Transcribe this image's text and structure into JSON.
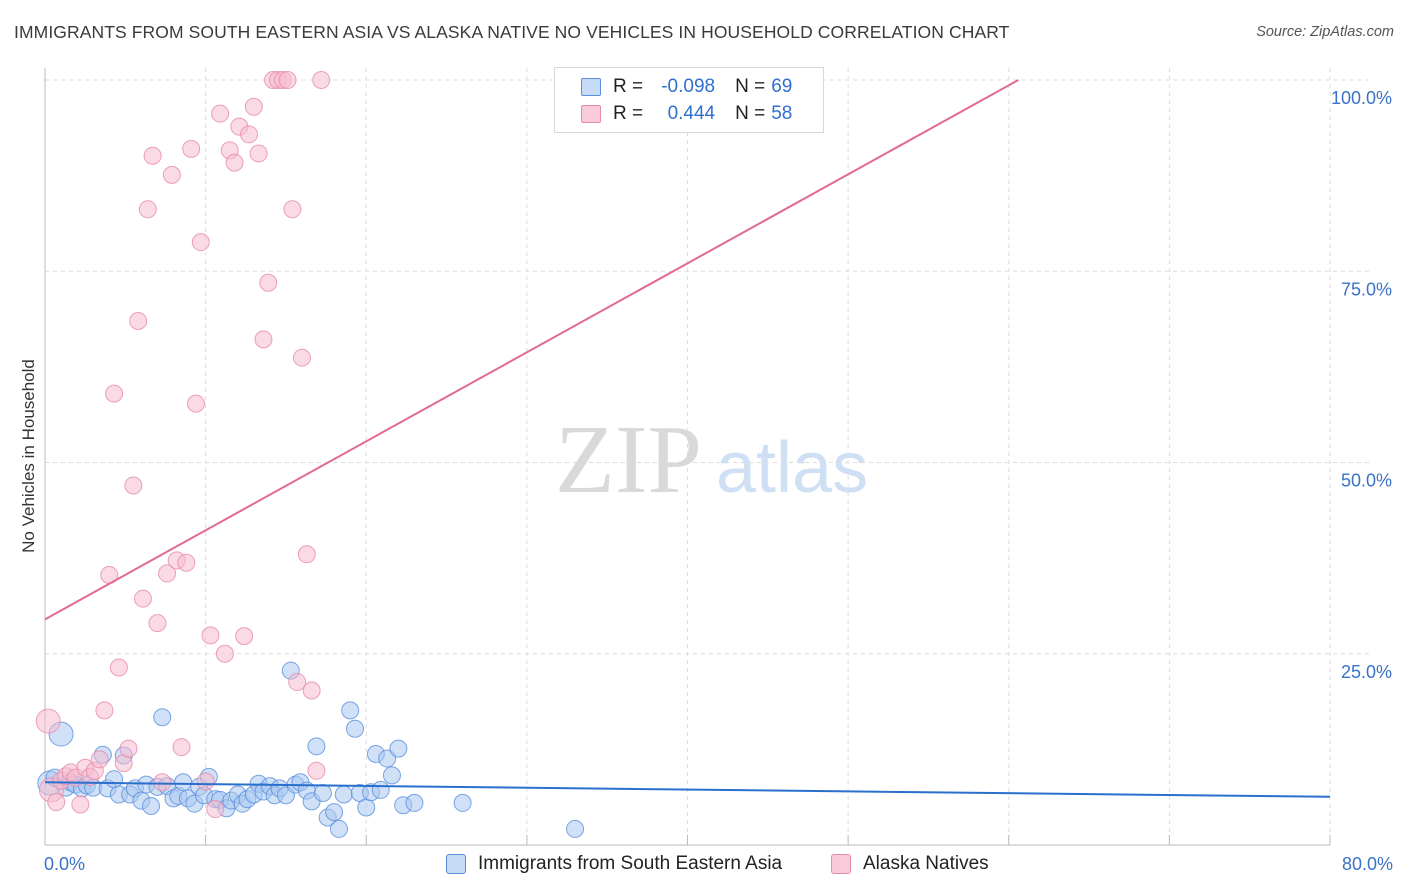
{
  "title": "IMMIGRANTS FROM SOUTH EASTERN ASIA VS ALASKA NATIVE NO VEHICLES IN HOUSEHOLD CORRELATION CHART",
  "source": "Source: ZipAtlas.com",
  "watermark": {
    "zip": "ZIP",
    "atlas": "atlas"
  },
  "colors": {
    "blue_fill": "#a9c8f0",
    "blue_stroke": "#5a8fdc",
    "blue_line": "#2b6fcc",
    "pink_fill": "#f6bcd0",
    "pink_stroke": "#e78aa9",
    "pink_line": "#e2698f",
    "axis_text": "#3a72c8",
    "grid": "#dddddd"
  },
  "legend": {
    "rows": [
      {
        "r_label": "R =",
        "r_value": "-0.098",
        "n_label": "N =",
        "n_value": "69",
        "series": "blue"
      },
      {
        "r_label": "R =",
        "r_value": "0.444",
        "n_label": "N =",
        "n_value": "58",
        "series": "pink"
      }
    ]
  },
  "chart_data": {
    "type": "scatter",
    "title": "IMMIGRANTS FROM SOUTH EASTERN ASIA VS ALASKA NATIVE NO VEHICLES IN HOUSEHOLD CORRELATION CHART",
    "xlabel": "",
    "ylabel": "No Vehicles in Household",
    "xlim": [
      0,
      80
    ],
    "ylim": [
      0,
      102
    ],
    "x_tick_labels": [
      {
        "value": 0,
        "label": "0.0%"
      },
      {
        "value": 80,
        "label": "80.0%"
      }
    ],
    "y_tick_labels": [
      {
        "value": 25,
        "label": "25.0%"
      },
      {
        "value": 50,
        "label": "50.0%"
      },
      {
        "value": 75,
        "label": "75.0%"
      },
      {
        "value": 100,
        "label": "100.0%"
      }
    ],
    "series": [
      {
        "name": "Immigrants from South Eastern Asia",
        "color": "blue",
        "trend": {
          "x0": 0,
          "y0": 8.2,
          "x1": 80,
          "y1": 6.3
        },
        "points": [
          [
            0.3,
            8.1,
            2
          ],
          [
            0.6,
            8.8,
            1
          ],
          [
            1.0,
            14.5,
            2
          ],
          [
            1.3,
            7.5,
            1
          ],
          [
            1.6,
            8.2,
            1
          ],
          [
            1.9,
            7.9,
            1
          ],
          [
            2.3,
            7.4,
            1
          ],
          [
            2.6,
            7.8,
            1
          ],
          [
            3.0,
            7.5,
            1
          ],
          [
            3.6,
            11.8,
            1
          ],
          [
            3.9,
            7.4,
            1
          ],
          [
            4.3,
            8.6,
            1
          ],
          [
            4.6,
            6.6,
            1
          ],
          [
            4.9,
            11.7,
            1
          ],
          [
            5.3,
            6.6,
            1
          ],
          [
            5.6,
            7.4,
            1
          ],
          [
            6.0,
            5.8,
            1
          ],
          [
            6.3,
            7.9,
            1
          ],
          [
            6.6,
            5.1,
            1
          ],
          [
            7.0,
            7.6,
            1
          ],
          [
            7.3,
            16.7,
            1
          ],
          [
            7.6,
            7.7,
            1
          ],
          [
            8.0,
            6.1,
            1
          ],
          [
            8.3,
            6.4,
            1
          ],
          [
            8.6,
            8.2,
            1
          ],
          [
            8.9,
            6.1,
            1
          ],
          [
            9.3,
            5.4,
            1
          ],
          [
            9.6,
            7.6,
            1
          ],
          [
            9.9,
            6.5,
            1
          ],
          [
            10.2,
            8.9,
            1
          ],
          [
            10.6,
            6.0,
            1
          ],
          [
            10.9,
            5.9,
            1
          ],
          [
            11.3,
            4.8,
            1
          ],
          [
            11.6,
            5.8,
            1
          ],
          [
            12.0,
            6.6,
            1
          ],
          [
            12.3,
            5.4,
            1
          ],
          [
            12.6,
            6.0,
            1
          ],
          [
            13.0,
            6.6,
            1
          ],
          [
            13.3,
            8.0,
            1
          ],
          [
            13.6,
            7.0,
            1
          ],
          [
            14.0,
            7.7,
            1
          ],
          [
            14.3,
            6.5,
            1
          ],
          [
            14.6,
            7.4,
            1
          ],
          [
            15.0,
            6.5,
            1
          ],
          [
            15.3,
            22.8,
            1
          ],
          [
            15.6,
            7.9,
            1
          ],
          [
            15.9,
            8.2,
            1
          ],
          [
            16.3,
            7.1,
            1
          ],
          [
            16.6,
            5.7,
            1
          ],
          [
            16.9,
            12.9,
            1
          ],
          [
            17.3,
            6.8,
            1
          ],
          [
            17.6,
            3.6,
            1
          ],
          [
            18.0,
            4.3,
            1
          ],
          [
            18.3,
            2.1,
            1
          ],
          [
            18.6,
            6.6,
            1
          ],
          [
            19.0,
            17.6,
            1
          ],
          [
            19.3,
            15.2,
            1
          ],
          [
            19.6,
            6.8,
            1
          ],
          [
            20.0,
            4.9,
            1
          ],
          [
            20.3,
            6.9,
            1
          ],
          [
            20.6,
            11.9,
            1
          ],
          [
            20.9,
            7.2,
            1
          ],
          [
            21.3,
            11.3,
            1
          ],
          [
            21.6,
            9.1,
            1
          ],
          [
            22.0,
            12.6,
            1
          ],
          [
            22.3,
            5.2,
            1
          ],
          [
            23.0,
            5.5,
            1
          ],
          [
            26.0,
            5.5,
            1
          ],
          [
            33.0,
            2.1,
            1
          ]
        ]
      },
      {
        "name": "Alaska Natives",
        "color": "pink",
        "trend": {
          "x0": 0,
          "y0": 29.5,
          "x1": 60.6,
          "y1": 100
        },
        "points": [
          [
            0.2,
            16.2,
            2
          ],
          [
            0.4,
            7.2,
            2
          ],
          [
            0.7,
            5.6,
            1
          ],
          [
            1.0,
            8.4,
            1
          ],
          [
            1.3,
            9.0,
            1
          ],
          [
            1.6,
            9.5,
            1
          ],
          [
            1.9,
            8.8,
            1
          ],
          [
            2.2,
            5.3,
            1
          ],
          [
            2.5,
            10.1,
            1
          ],
          [
            2.8,
            8.9,
            1
          ],
          [
            3.1,
            9.7,
            1
          ],
          [
            3.4,
            11.2,
            1
          ],
          [
            3.7,
            17.6,
            1
          ],
          [
            4.0,
            35.3,
            1
          ],
          [
            4.3,
            59.0,
            1
          ],
          [
            4.6,
            23.2,
            1
          ],
          [
            4.9,
            10.7,
            1
          ],
          [
            5.2,
            12.6,
            1
          ],
          [
            5.5,
            47.0,
            1
          ],
          [
            5.8,
            68.5,
            1
          ],
          [
            6.1,
            32.2,
            1
          ],
          [
            6.4,
            83.1,
            1
          ],
          [
            6.7,
            90.1,
            1
          ],
          [
            7.0,
            29.0,
            1
          ],
          [
            7.3,
            8.2,
            1
          ],
          [
            7.6,
            35.5,
            1
          ],
          [
            7.9,
            87.6,
            1
          ],
          [
            8.2,
            37.2,
            1
          ],
          [
            8.5,
            12.8,
            1
          ],
          [
            8.8,
            36.9,
            1
          ],
          [
            9.1,
            91.0,
            1
          ],
          [
            9.4,
            57.7,
            1
          ],
          [
            9.7,
            78.8,
            1
          ],
          [
            10.0,
            8.3,
            1
          ],
          [
            10.3,
            27.4,
            1
          ],
          [
            10.6,
            4.7,
            1
          ],
          [
            10.9,
            95.6,
            1
          ],
          [
            11.2,
            25.0,
            1
          ],
          [
            11.5,
            90.8,
            1
          ],
          [
            11.8,
            89.2,
            1
          ],
          [
            12.1,
            93.9,
            1
          ],
          [
            12.4,
            27.3,
            1
          ],
          [
            12.7,
            92.9,
            1
          ],
          [
            13.0,
            96.5,
            1
          ],
          [
            13.3,
            90.4,
            1
          ],
          [
            13.6,
            66.1,
            1
          ],
          [
            13.9,
            73.5,
            1
          ],
          [
            14.2,
            100.0,
            1
          ],
          [
            14.5,
            100.0,
            1
          ],
          [
            14.8,
            100.0,
            1
          ],
          [
            15.1,
            100.0,
            1
          ],
          [
            15.4,
            83.1,
            1
          ],
          [
            15.7,
            21.3,
            1
          ],
          [
            16.0,
            63.7,
            1
          ],
          [
            16.3,
            38.0,
            1
          ],
          [
            16.6,
            20.2,
            1
          ],
          [
            16.9,
            9.7,
            1
          ],
          [
            17.2,
            100.0,
            1
          ]
        ]
      }
    ]
  },
  "bottom_legend": [
    {
      "label": "Immigrants from South Eastern Asia",
      "color": "blue"
    },
    {
      "label": "Alaska Natives",
      "color": "pink"
    }
  ]
}
